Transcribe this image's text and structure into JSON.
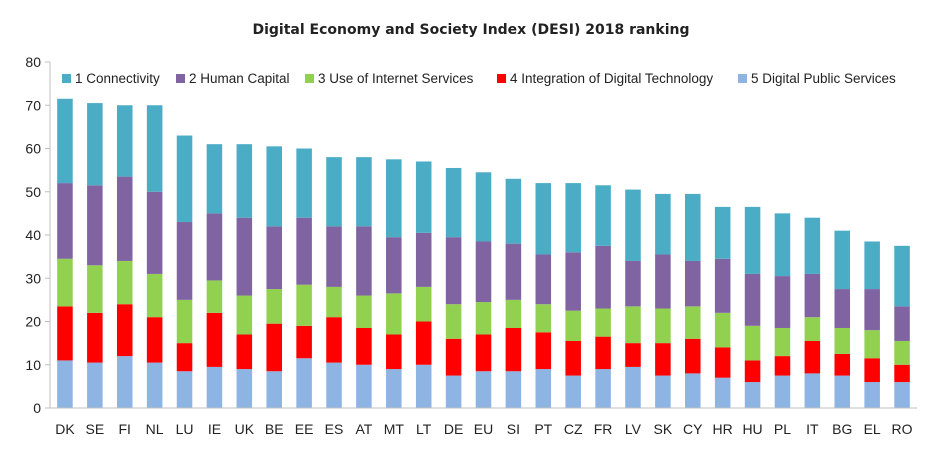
{
  "chart_data": {
    "type": "bar",
    "stacked": true,
    "title": "Digital Economy and Society Index (DESI) 2018 ranking",
    "xlabel": "",
    "ylabel": "",
    "ylim": [
      0,
      80
    ],
    "yticks": [
      0,
      10,
      20,
      30,
      40,
      50,
      60,
      70,
      80
    ],
    "grid": false,
    "legend_position": "top",
    "categories": [
      "DK",
      "SE",
      "FI",
      "NL",
      "LU",
      "IE",
      "UK",
      "BE",
      "EE",
      "ES",
      "AT",
      "MT",
      "LT",
      "DE",
      "EU",
      "SI",
      "PT",
      "CZ",
      "FR",
      "LV",
      "SK",
      "CY",
      "HR",
      "HU",
      "PL",
      "IT",
      "BG",
      "EL",
      "RO"
    ],
    "legend_order": [
      "1 Connectivity",
      "2 Human Capital",
      "3 Use of Internet Services",
      "4 Integration of Digital Technology",
      "5 Digital Public Services"
    ],
    "series": [
      {
        "name": "5 Digital Public Services",
        "color": "#8eb4e3",
        "values": [
          11,
          10.5,
          12,
          10.5,
          8.5,
          9.5,
          9,
          8.5,
          11.5,
          10.5,
          10,
          9,
          10,
          7.5,
          8.5,
          8.5,
          9,
          7.5,
          9,
          9.5,
          7.5,
          8,
          7,
          6,
          7.5,
          8,
          7.5,
          6,
          6
        ]
      },
      {
        "name": "4 Integration of Digital Technology",
        "color": "#ff0000",
        "values": [
          12.5,
          11.5,
          12,
          10.5,
          6.5,
          12.5,
          8,
          11,
          7.5,
          10.5,
          8.5,
          8,
          10,
          8.5,
          8.5,
          10,
          8.5,
          8,
          7.5,
          5.5,
          7.5,
          8,
          7,
          5,
          4.5,
          7.5,
          5,
          5.5,
          4
        ]
      },
      {
        "name": "3 Use of Internet Services",
        "color": "#92d050",
        "values": [
          11,
          11,
          10,
          10,
          10,
          7.5,
          9,
          8,
          9.5,
          7,
          7.5,
          9.5,
          8,
          8,
          7.5,
          6.5,
          6.5,
          7,
          6.5,
          8.5,
          8,
          7.5,
          8,
          8,
          6.5,
          5.5,
          6,
          6.5,
          5.5
        ]
      },
      {
        "name": "2 Human Capital",
        "color": "#8064a2",
        "values": [
          17.5,
          18.5,
          19.5,
          19,
          18,
          15.5,
          18,
          14.5,
          15.5,
          14,
          16,
          13,
          12.5,
          15.5,
          14,
          13,
          11.5,
          13.5,
          14.5,
          10.5,
          12.5,
          10.5,
          12.5,
          12,
          12,
          10,
          9,
          9.5,
          8
        ]
      },
      {
        "name": "1 Connectivity",
        "color": "#4bacc6",
        "values": [
          19.5,
          19,
          16.5,
          20,
          20,
          16,
          17,
          18.5,
          16,
          16,
          16,
          18,
          16.5,
          16,
          16,
          15,
          16.5,
          16,
          14,
          16.5,
          14,
          15.5,
          12,
          15.5,
          14.5,
          13,
          13.5,
          11,
          14
        ]
      }
    ]
  }
}
